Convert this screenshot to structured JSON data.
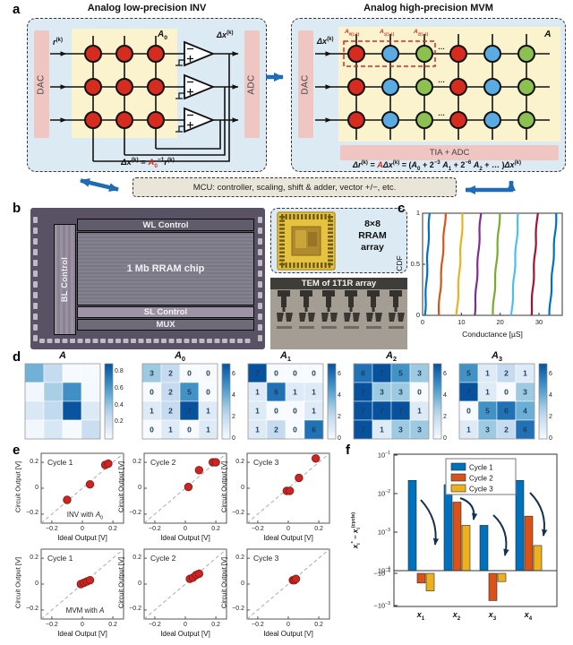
{
  "panels": {
    "a": {
      "label": "a",
      "left_title": "Analog low-precision INV",
      "right_title": "Analog high-precision MVM",
      "dac": "DAC",
      "adc": "ADC",
      "tia_adc": "TIA + ADC",
      "r_in_html": "<i>r</i><sup>(k)</sup>",
      "dx_html": "<i>Δx</i><sup>(k)</sup>",
      "a0_html": "<i>A</i><sub>0</sub>",
      "a_html": "<i>A</i>",
      "dots": "…",
      "w_labels_html": [
        "<i>A</i><sub>0(1,1)</sub>",
        "<i>A</i><sub>1(1,1)</sub>",
        "<i>A</i><sub>2(1,1)</sub>"
      ],
      "left_formula_html": "<i>Δx</i><sup>(k)</sup> = <span class=\"red\"><i>A</i><sub>0</sub></span><sup>−1</sup><i>r</i><sup>(k)</sup>",
      "right_formula_html": "<i>Δr</i><sup>(k)</sup> = <span class=\"red\"><i>A</i></span><i>Δx</i><sup>(k)</sup> = (<i>A</i><sub>0</sub> + 2<sup>−3</sup> <i>A</i><sub>1</sub> + 2<sup>−6</sup> <i>A</i><sub>2</sub> + … )<i>Δx</i><sup>(k)</sup>",
      "mcu": "MCU: controller, scaling, shift & adder, vector +/−, etc.",
      "crossbar": {
        "rows": 3,
        "left_col_colors": [
          "red",
          "red",
          "red"
        ],
        "right_col_colors": [
          "red",
          "blue",
          "green",
          "red",
          "blue",
          "green"
        ]
      },
      "device_colors": {
        "red": "#d62b1f",
        "blue": "#5aabe2",
        "green": "#8cc152"
      }
    },
    "b": {
      "label": "b",
      "wl": "WL Control",
      "bl": "BL Control",
      "chip": "1 Mb RRAM chip",
      "sl": "SL Control",
      "mux": "MUX",
      "pkg_html": "8×8<br>RRAM<br>array",
      "tem": "TEM of 1T1R array"
    }
  },
  "chart_data": [
    {
      "panel_label": "c",
      "type": "line",
      "name": "conductance-cdf",
      "xlabel": "Conductance [µS]",
      "ylabel": "CDF",
      "xlim": [
        0,
        36
      ],
      "ylim": [
        0,
        1
      ],
      "xticks": [
        0,
        10,
        20,
        30
      ],
      "yticks": [
        0,
        0.5,
        1
      ],
      "series": [
        {
          "mid": 1.2,
          "spread": 1.2,
          "color": "#0072BD"
        },
        {
          "mid": 5.0,
          "spread": 1.8,
          "color": "#D95319"
        },
        {
          "mid": 9.6,
          "spread": 1.6,
          "color": "#EDB120"
        },
        {
          "mid": 14.2,
          "spread": 1.6,
          "color": "#7E2F8E"
        },
        {
          "mid": 19.0,
          "spread": 1.8,
          "color": "#77AC30"
        },
        {
          "mid": 23.8,
          "spread": 1.8,
          "color": "#4DBEEE"
        },
        {
          "mid": 28.8,
          "spread": 1.6,
          "color": "#A2142F"
        },
        {
          "mid": 33.6,
          "spread": 1.8,
          "color": "#0072BD"
        }
      ]
    },
    {
      "panel_label": "d",
      "type": "heatmap",
      "colormap": "Blues",
      "maps": [
        {
          "title_html": "<i>A</i>",
          "vmax": 0.9,
          "show_values": false,
          "cbar_ticks": [
            0.8,
            0.6,
            0.4,
            0.2
          ],
          "values": [
            [
              0.5,
              0.26,
              0.01,
              0.01
            ],
            [
              0.03,
              0.35,
              0.65,
              0.02
            ],
            [
              0.15,
              0.27,
              0.89,
              0.14
            ],
            [
              0.03,
              0.16,
              0.01,
              0.23
            ]
          ]
        },
        {
          "title_html": "<i>A</i><sub>0</sub>",
          "vmax": 7,
          "show_values": true,
          "cbar_ticks": [
            6,
            4,
            2,
            0
          ],
          "values": [
            [
              3,
              2,
              0,
              0
            ],
            [
              0,
              2,
              5,
              0
            ],
            [
              1,
              2,
              7,
              1
            ],
            [
              0,
              1,
              0,
              1
            ]
          ]
        },
        {
          "title_html": "<i>A</i><sub>1</sub>",
          "vmax": 7,
          "show_values": true,
          "cbar_ticks": [
            6,
            4,
            2,
            0
          ],
          "values": [
            [
              7,
              0,
              0,
              0
            ],
            [
              1,
              6,
              1,
              1
            ],
            [
              1,
              0,
              0,
              1
            ],
            [
              1,
              2,
              0,
              6
            ]
          ]
        },
        {
          "title_html": "<i>A</i><sub>2</sub>",
          "vmax": 7,
          "show_values": true,
          "cbar_ticks": [
            6,
            4,
            2,
            0
          ],
          "values": [
            [
              6,
              7,
              5,
              3
            ],
            [
              7,
              3,
              3,
              0
            ],
            [
              7,
              7,
              7,
              1
            ],
            [
              7,
              1,
              3,
              3
            ]
          ]
        },
        {
          "title_html": "<i>A</i><sub>3</sub>",
          "vmax": 7,
          "show_values": true,
          "cbar_ticks": [
            6,
            4,
            2,
            0
          ],
          "values": [
            [
              5,
              1,
              2,
              1
            ],
            [
              7,
              1,
              0,
              3
            ],
            [
              0,
              5,
              6,
              4
            ],
            [
              1,
              3,
              2,
              6
            ]
          ]
        }
      ]
    },
    {
      "panel_label": "e",
      "type": "scatter",
      "xlabel": "Ideal Output [V]",
      "ylabel": "Circuit Output [V]",
      "ticks": [
        -0.2,
        0,
        0.2
      ],
      "lim": [
        -0.27,
        0.27
      ],
      "marker_color": "#cc2522",
      "plots": [
        {
          "cycle": "Cycle 1",
          "note_html": "INV with <i>A</i><sub>0</sub>",
          "points": [
            [
              -0.1,
              -0.09
            ],
            [
              0.05,
              0.03
            ],
            [
              0.15,
              0.18
            ],
            [
              0.17,
              0.19
            ]
          ]
        },
        {
          "cycle": "Cycle 2",
          "points": [
            [
              0.02,
              0.01
            ],
            [
              0.09,
              0.14
            ],
            [
              0.18,
              0.2
            ],
            [
              0.2,
              0.2
            ]
          ]
        },
        {
          "cycle": "Cycle 3",
          "points": [
            [
              -0.01,
              -0.02
            ],
            [
              0.01,
              -0.02
            ],
            [
              0.07,
              0.08
            ],
            [
              0.18,
              0.23
            ]
          ]
        },
        {
          "cycle": "Cycle 1",
          "note_html": "MVM with <i>A</i>",
          "points": [
            [
              -0.01,
              0.0
            ],
            [
              0.01,
              0.01
            ],
            [
              0.03,
              0.02
            ],
            [
              0.05,
              0.03
            ]
          ]
        },
        {
          "cycle": "Cycle 2",
          "points": [
            [
              0.03,
              0.04
            ],
            [
              0.05,
              0.05
            ],
            [
              0.07,
              0.07
            ],
            [
              0.09,
              0.08
            ]
          ]
        },
        {
          "cycle": "Cycle 3",
          "points": [
            [
              0.03,
              0.03
            ],
            [
              0.04,
              0.03
            ],
            [
              0.05,
              0.04
            ]
          ]
        }
      ]
    },
    {
      "panel_label": "f",
      "type": "bar",
      "yscale": "symlog",
      "ylabel_html": "<i>x</i><sub>i</sub><sup>*</sup> − <i>x</i><sub>i</sub><sup>(cycle)</sup>",
      "categories_html": [
        "<i>x</i><sub>1</sub>",
        "<i>x</i><sub>2</sub>",
        "<i>x</i><sub>3</sub>",
        "<i>x</i><sub>4</sub>"
      ],
      "yticks": [
        {
          "v": 0.1,
          "html": "10<sup>−1</sup>"
        },
        {
          "v": 0.01,
          "html": "10<sup>−2</sup>"
        },
        {
          "v": 0.001,
          "html": "10<sup>−3</sup>"
        },
        {
          "v": 0.0001,
          "html": "10<sup>−4</sup>"
        },
        {
          "v": -0.0001,
          "html": "−10<sup>−4</sup>"
        },
        {
          "v": -0.001,
          "html": "−10<sup>−3</sup>"
        }
      ],
      "series": [
        {
          "name": "Cycle 1",
          "color": "#0072BD",
          "values": [
            0.022,
            0.017,
            0.0015,
            0.022
          ]
        },
        {
          "name": "Cycle 2",
          "color": "#D95319",
          "values": [
            -0.0002,
            0.006,
            -0.0007,
            0.0026
          ]
        },
        {
          "name": "Cycle 3",
          "color": "#EDB120",
          "values": [
            -0.00035,
            0.0015,
            -0.00018,
            0.00045
          ]
        }
      ]
    }
  ]
}
